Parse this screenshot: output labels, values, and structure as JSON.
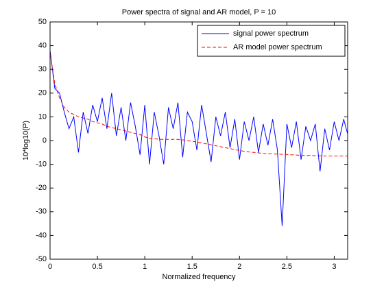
{
  "chart_data": {
    "type": "line",
    "title": "Power spectra of signal and AR model, P = 10",
    "x_label": "Normalized frequency",
    "y_label": "10*log10(P)",
    "x": [
      0,
      0.05,
      0.1,
      0.15,
      0.2,
      0.25,
      0.3,
      0.35,
      0.4,
      0.45,
      0.5,
      0.55,
      0.6,
      0.65,
      0.7,
      0.75,
      0.8,
      0.85,
      0.9,
      0.95,
      1.0,
      1.05,
      1.1,
      1.15,
      1.2,
      1.25,
      1.3,
      1.35,
      1.4,
      1.45,
      1.5,
      1.55,
      1.6,
      1.65,
      1.7,
      1.75,
      1.8,
      1.85,
      1.9,
      1.95,
      2.0,
      2.05,
      2.1,
      2.15,
      2.2,
      2.25,
      2.3,
      2.35,
      2.4,
      2.45,
      2.5,
      2.55,
      2.6,
      2.65,
      2.7,
      2.75,
      2.8,
      2.85,
      2.9,
      2.95,
      3.0,
      3.05,
      3.1,
      3.14
    ],
    "series": [
      {
        "name": "signal power spectrum",
        "color": "#0000ff",
        "linestyle": "solid",
        "values": [
          38,
          22,
          20,
          12,
          5,
          10,
          -5,
          12,
          3,
          15,
          8,
          18,
          5,
          20,
          2,
          14,
          0,
          16,
          6,
          -6,
          15,
          -10,
          12,
          2,
          -10,
          14,
          5,
          16,
          -7,
          12,
          8,
          -4,
          15,
          3,
          -9,
          10,
          2,
          12,
          -3,
          9,
          -8,
          8,
          0,
          10,
          -5,
          7,
          -2,
          9,
          -4,
          -36,
          7,
          -3,
          8,
          -8,
          6,
          0,
          7,
          -13,
          5,
          -4,
          8,
          0,
          9,
          3
        ]
      },
      {
        "name": "AR model power spectrum",
        "color": "#ff0000",
        "linestyle": "dashed",
        "values": [
          37,
          24,
          18,
          14,
          12,
          11,
          10,
          9.5,
          9,
          8,
          7.5,
          7,
          6,
          5.5,
          5,
          4.5,
          4,
          3.5,
          3,
          2.5,
          1.5,
          1,
          0.8,
          0.5,
          0.5,
          0.5,
          0.5,
          0.5,
          0.3,
          0,
          -0.3,
          -0.6,
          -1,
          -1.4,
          -1.8,
          -2.2,
          -2.6,
          -3,
          -3.4,
          -3.8,
          -4.2,
          -4.5,
          -4.8,
          -5,
          -5.2,
          -5.4,
          -5.5,
          -5.6,
          -5.7,
          -5.8,
          -5.9,
          -6,
          -6.1,
          -6.2,
          -6.3,
          -6.3,
          -6.4,
          -6.4,
          -6.5,
          -6.5,
          -6.5,
          -6.5,
          -6.5,
          -6.5
        ]
      }
    ],
    "xlim": [
      0,
      3.1416
    ],
    "xticks": [
      0,
      0.5,
      1,
      1.5,
      2,
      2.5,
      3
    ],
    "ylim": [
      -50,
      50
    ],
    "yticks": [
      -50,
      -40,
      -30,
      -20,
      -10,
      0,
      10,
      20,
      30,
      40,
      50
    ],
    "grid": false,
    "legend": "top-right"
  }
}
